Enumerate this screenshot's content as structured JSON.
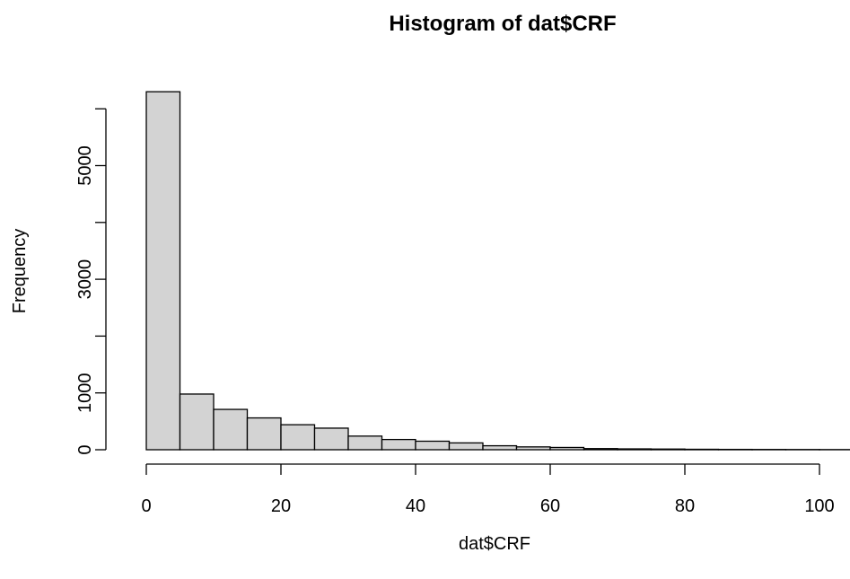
{
  "chart_data": {
    "type": "bar",
    "title": "Histogram of dat$CRF",
    "xlabel": "dat$CRF",
    "ylabel": "Frequency",
    "bin_width": 5,
    "bins": [
      {
        "from": 0,
        "to": 5,
        "count": 6300
      },
      {
        "from": 5,
        "to": 10,
        "count": 980
      },
      {
        "from": 10,
        "to": 15,
        "count": 710
      },
      {
        "from": 15,
        "to": 20,
        "count": 560
      },
      {
        "from": 20,
        "to": 25,
        "count": 440
      },
      {
        "from": 25,
        "to": 30,
        "count": 380
      },
      {
        "from": 30,
        "to": 35,
        "count": 240
      },
      {
        "from": 35,
        "to": 40,
        "count": 180
      },
      {
        "from": 40,
        "to": 45,
        "count": 150
      },
      {
        "from": 45,
        "to": 50,
        "count": 120
      },
      {
        "from": 50,
        "to": 55,
        "count": 70
      },
      {
        "from": 55,
        "to": 60,
        "count": 50
      },
      {
        "from": 60,
        "to": 65,
        "count": 40
      },
      {
        "from": 65,
        "to": 70,
        "count": 20
      },
      {
        "from": 70,
        "to": 75,
        "count": 15
      },
      {
        "from": 75,
        "to": 80,
        "count": 12
      },
      {
        "from": 80,
        "to": 85,
        "count": 8
      },
      {
        "from": 85,
        "to": 90,
        "count": 6
      },
      {
        "from": 90,
        "to": 95,
        "count": 5
      },
      {
        "from": 95,
        "to": 100,
        "count": 4
      },
      {
        "from": 100,
        "to": 105,
        "count": 3
      }
    ],
    "x_ticks": [
      0,
      20,
      40,
      60,
      80,
      100
    ],
    "y_ticks": [
      0,
      1000,
      2000,
      3000,
      4000,
      5000,
      6000
    ],
    "y_tick_labels": [
      "0",
      "1000",
      "",
      "3000",
      "",
      "5000",
      ""
    ],
    "xlim": [
      0,
      105
    ],
    "ylim": [
      0,
      6300
    ],
    "grid": false,
    "colors": {
      "bar_fill": "#d3d3d3",
      "bar_stroke": "#000000"
    }
  }
}
